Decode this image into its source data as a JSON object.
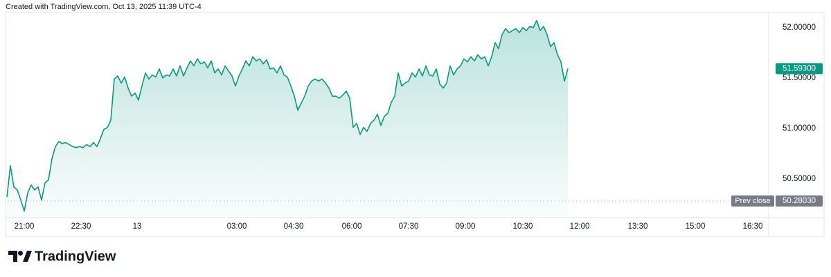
{
  "chart_data": {
    "type": "line",
    "header": "Created with TradingView.com, Oct 13, 2025 11:39 UTC-4",
    "brand": "TradingView",
    "color": "#089981",
    "values": [
      50.32,
      50.63,
      50.42,
      50.39,
      50.29,
      50.18,
      50.36,
      50.44,
      50.39,
      50.42,
      50.29,
      50.46,
      50.49,
      50.7,
      50.82,
      50.87,
      50.85,
      50.86,
      50.84,
      50.82,
      50.81,
      50.82,
      50.81,
      50.84,
      50.82,
      50.86,
      50.82,
      50.9,
      50.99,
      51.01,
      51.08,
      51.49,
      51.52,
      51.45,
      51.51,
      51.4,
      51.32,
      51.35,
      51.28,
      51.42,
      51.55,
      51.49,
      51.53,
      51.51,
      51.59,
      51.5,
      51.53,
      51.52,
      51.59,
      51.52,
      51.62,
      51.52,
      51.6,
      51.67,
      51.62,
      51.69,
      51.64,
      51.66,
      51.6,
      51.67,
      51.55,
      51.59,
      51.53,
      51.62,
      51.57,
      51.52,
      51.42,
      51.52,
      51.59,
      51.67,
      51.62,
      51.71,
      51.67,
      51.69,
      51.64,
      51.68,
      51.59,
      51.6,
      51.55,
      51.62,
      51.53,
      51.51,
      51.42,
      51.32,
      51.18,
      51.25,
      51.32,
      51.42,
      51.47,
      51.49,
      51.47,
      51.49,
      51.45,
      51.4,
      51.32,
      51.32,
      51.3,
      51.33,
      51.37,
      51.3,
      51.01,
      51.05,
      50.94,
      51.01,
      50.97,
      51.05,
      51.08,
      51.14,
      51.03,
      51.12,
      51.15,
      51.26,
      51.32,
      51.55,
      51.42,
      51.45,
      51.47,
      51.55,
      51.51,
      51.59,
      51.52,
      51.62,
      51.53,
      51.52,
      51.59,
      51.44,
      51.4,
      51.45,
      51.62,
      51.53,
      51.59,
      51.62,
      51.69,
      51.66,
      51.71,
      51.67,
      51.73,
      51.69,
      51.71,
      51.62,
      51.71,
      51.85,
      51.79,
      51.93,
      51.99,
      51.95,
      51.97,
      51.99,
      51.95,
      52.0,
      51.97,
      52.01,
      52.0,
      52.07,
      51.97,
      52.01,
      51.93,
      51.81,
      51.85,
      51.73,
      51.66,
      51.47,
      51.593
    ],
    "xlim": [
      -0.4,
      220
    ],
    "xticks": [
      {
        "value": 5,
        "label": "21:00"
      },
      {
        "value": 21.4,
        "label": "22:30"
      },
      {
        "value": 37.6,
        "label": "13"
      },
      {
        "value": 66.4,
        "label": "03:00"
      },
      {
        "value": 82.8,
        "label": "04:30"
      },
      {
        "value": 99.6,
        "label": "06:00"
      },
      {
        "value": 116,
        "label": "07:30"
      },
      {
        "value": 132.4,
        "label": "09:00"
      },
      {
        "value": 149,
        "label": "10:30"
      },
      {
        "value": 165.4,
        "label": "12:00"
      },
      {
        "value": 182.2,
        "label": "13:30"
      },
      {
        "value": 198.8,
        "label": "15:00"
      },
      {
        "value": 215.4,
        "label": "16:30"
      }
    ],
    "ylim": [
      50.116,
      52.15
    ],
    "yticks": [
      {
        "value": 50.5,
        "label": "50.50000"
      },
      {
        "value": 51,
        "label": "51.00000"
      },
      {
        "value": 51.5,
        "label": "51.50000"
      },
      {
        "value": 52,
        "label": "52.00000"
      }
    ],
    "last_price": {
      "value": 51.593,
      "label": "51.59300"
    },
    "prev_close": {
      "name": "Prev close",
      "value": 50.2803,
      "label": "50.28030"
    }
  }
}
